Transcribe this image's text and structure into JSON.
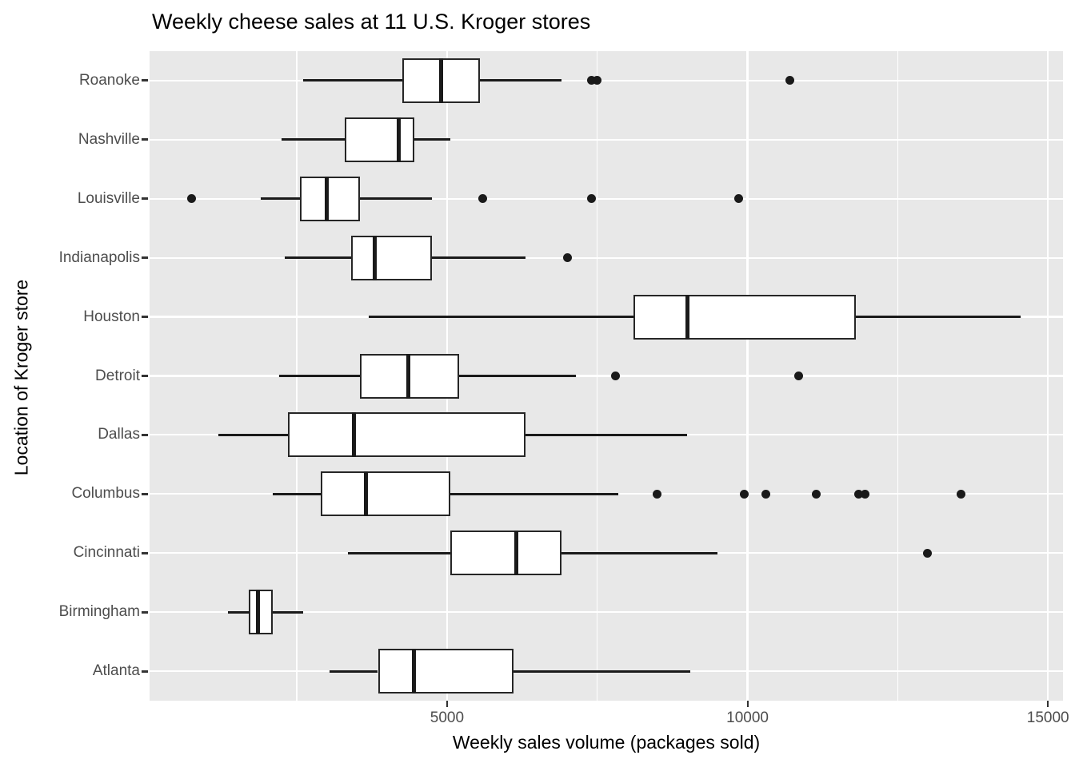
{
  "title": "Weekly cheese sales at 11 U.S. Kroger stores",
  "chart_data": {
    "type": "boxplot",
    "orientation": "horizontal",
    "title": "Weekly cheese sales at 11 U.S. Kroger stores",
    "xlabel": "Weekly sales volume (packages sold)",
    "ylabel": "Location of Kroger store",
    "xlim": [
      50,
      15250
    ],
    "x_major_ticks": [
      5000,
      10000,
      15000
    ],
    "x_tick_labels": [
      "5000",
      "10000",
      "15000"
    ],
    "x_minor_gridlines": [
      2500,
      7500,
      12500
    ],
    "grid": "on",
    "panel_bg": "#E8E8E8",
    "gridline_color": "#FFFFFF",
    "box_fill": "#FFFFFF",
    "box_border_color": "#262626",
    "outlier_color": "#1A1A1A",
    "tick_label_color": "#4D4D4D",
    "categories_top_to_bottom": [
      "Roanoke",
      "Nashville",
      "Louisville",
      "Indianapolis",
      "Houston",
      "Detroit",
      "Dallas",
      "Columbus",
      "Cincinnati",
      "Birmingham",
      "Atlanta"
    ],
    "series": [
      {
        "store": "Roanoke",
        "whisker_low": 2600,
        "q1": 4250,
        "median": 4900,
        "q3": 5550,
        "whisker_high": 6900,
        "outliers": [
          7400,
          7500,
          10700
        ]
      },
      {
        "store": "Nashville",
        "whisker_low": 2250,
        "q1": 3300,
        "median": 4200,
        "q3": 4450,
        "whisker_high": 5050,
        "outliers": []
      },
      {
        "store": "Louisville",
        "whisker_low": 1900,
        "q1": 2550,
        "median": 3000,
        "q3": 3550,
        "whisker_high": 4750,
        "outliers": [
          750,
          5600,
          7400,
          9850
        ]
      },
      {
        "store": "Indianapolis",
        "whisker_low": 2300,
        "q1": 3400,
        "median": 3800,
        "q3": 4750,
        "whisker_high": 6300,
        "outliers": [
          7000
        ]
      },
      {
        "store": "Houston",
        "whisker_low": 3700,
        "q1": 8100,
        "median": 9000,
        "q3": 11800,
        "whisker_high": 14550,
        "outliers": []
      },
      {
        "store": "Detroit",
        "whisker_low": 2200,
        "q1": 3550,
        "median": 4350,
        "q3": 5200,
        "whisker_high": 7150,
        "outliers": [
          7800,
          10850
        ]
      },
      {
        "store": "Dallas",
        "whisker_low": 1200,
        "q1": 2350,
        "median": 3450,
        "q3": 6300,
        "whisker_high": 9000,
        "outliers": []
      },
      {
        "store": "Columbus",
        "whisker_low": 2100,
        "q1": 2900,
        "median": 3650,
        "q3": 5050,
        "whisker_high": 7850,
        "outliers": [
          8500,
          9950,
          10300,
          11150,
          11850,
          11950,
          13550
        ]
      },
      {
        "store": "Cincinnati",
        "whisker_low": 3350,
        "q1": 5050,
        "median": 6150,
        "q3": 6900,
        "whisker_high": 9500,
        "outliers": [
          13000
        ]
      },
      {
        "store": "Birmingham",
        "whisker_low": 1350,
        "q1": 1700,
        "median": 1850,
        "q3": 2100,
        "whisker_high": 2600,
        "outliers": []
      },
      {
        "store": "Atlanta",
        "whisker_low": 3050,
        "q1": 3850,
        "median": 4450,
        "q3": 6100,
        "whisker_high": 9050,
        "outliers": []
      }
    ]
  }
}
